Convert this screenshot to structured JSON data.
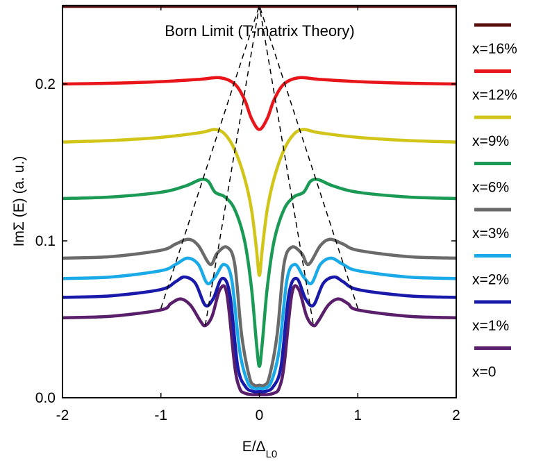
{
  "chart_data": {
    "type": "line",
    "title": "Born Limit (T-matrix Theory)",
    "xlabel": {
      "main": "E/Δ",
      "sub": "L0"
    },
    "ylabel": "ImΣ (E) (a. u.)",
    "xlim": [
      -2,
      2
    ],
    "ylim": [
      0,
      0.25
    ],
    "xticks": [
      {
        "value": -2,
        "label": "-2"
      },
      {
        "value": -1,
        "label": "-1"
      },
      {
        "value": 0,
        "label": "0"
      },
      {
        "value": 1,
        "label": "1"
      },
      {
        "value": 2,
        "label": "2"
      }
    ],
    "yticks": [
      {
        "value": 0.0,
        "label": "0.0"
      },
      {
        "value": 0.1,
        "label": "0.1"
      },
      {
        "value": 0.2,
        "label": "0.2"
      }
    ],
    "grid": false,
    "legend_position": "right-outside",
    "series": [
      {
        "name": "x=16%",
        "color": "#5a0f0f",
        "x": [
          -2,
          -1,
          -0.5,
          0,
          0.5,
          1,
          2
        ],
        "y": [
          0.2495,
          0.2495,
          0.2495,
          0.2495,
          0.2495,
          0.2495,
          0.2495
        ]
      },
      {
        "name": "x=12%",
        "color": "#e8161a",
        "x": [
          -2,
          -1.5,
          -1,
          -0.6,
          -0.4,
          -0.25,
          -0.15,
          -0.08,
          0,
          0.08,
          0.15,
          0.25,
          0.4,
          0.6,
          1,
          1.5,
          2
        ],
        "y": [
          0.2,
          0.2005,
          0.2015,
          0.203,
          0.204,
          0.2,
          0.19,
          0.178,
          0.171,
          0.178,
          0.19,
          0.2,
          0.204,
          0.203,
          0.2015,
          0.2005,
          0.2
        ]
      },
      {
        "name": "x=9%",
        "color": "#d2c51a",
        "x": [
          -2,
          -1.5,
          -1,
          -0.6,
          -0.45,
          -0.35,
          -0.25,
          -0.15,
          -0.08,
          -0.03,
          0,
          0.03,
          0.08,
          0.15,
          0.25,
          0.35,
          0.45,
          0.6,
          1,
          1.5,
          2
        ],
        "y": [
          0.163,
          0.164,
          0.166,
          0.169,
          0.171,
          0.168,
          0.158,
          0.14,
          0.12,
          0.095,
          0.078,
          0.095,
          0.12,
          0.14,
          0.158,
          0.168,
          0.171,
          0.169,
          0.166,
          0.164,
          0.163
        ]
      },
      {
        "name": "x=6%",
        "color": "#1a9a55",
        "x": [
          -2,
          -1.5,
          -1,
          -0.75,
          -0.6,
          -0.52,
          -0.45,
          -0.35,
          -0.25,
          -0.15,
          -0.08,
          -0.03,
          0,
          0.03,
          0.08,
          0.15,
          0.25,
          0.35,
          0.45,
          0.52,
          0.6,
          0.75,
          1,
          1.5,
          2
        ],
        "y": [
          0.127,
          0.128,
          0.131,
          0.135,
          0.139,
          0.138,
          0.131,
          0.128,
          0.12,
          0.1,
          0.07,
          0.035,
          0.02,
          0.035,
          0.07,
          0.1,
          0.12,
          0.128,
          0.131,
          0.138,
          0.139,
          0.135,
          0.131,
          0.128,
          0.127
        ]
      },
      {
        "name": "x=3%",
        "color": "#6a6a6a",
        "x": [
          -2,
          -1.5,
          -1,
          -0.85,
          -0.72,
          -0.62,
          -0.5,
          -0.43,
          -0.33,
          -0.25,
          -0.18,
          -0.1,
          -0.05,
          0,
          0.05,
          0.1,
          0.18,
          0.25,
          0.33,
          0.43,
          0.5,
          0.62,
          0.72,
          0.85,
          1,
          1.5,
          2
        ],
        "y": [
          0.089,
          0.09,
          0.094,
          0.098,
          0.101,
          0.097,
          0.085,
          0.092,
          0.096,
          0.085,
          0.04,
          0.013,
          0.008,
          0.008,
          0.008,
          0.013,
          0.04,
          0.085,
          0.096,
          0.092,
          0.085,
          0.097,
          0.101,
          0.098,
          0.094,
          0.09,
          0.089
        ]
      },
      {
        "name": "x=2%",
        "color": "#1aaae8",
        "x": [
          -2,
          -1.5,
          -1,
          -0.85,
          -0.73,
          -0.62,
          -0.53,
          -0.45,
          -0.36,
          -0.28,
          -0.2,
          -0.12,
          -0.05,
          0,
          0.05,
          0.12,
          0.2,
          0.28,
          0.36,
          0.45,
          0.53,
          0.62,
          0.73,
          0.85,
          1,
          1.5,
          2
        ],
        "y": [
          0.076,
          0.077,
          0.081,
          0.085,
          0.089,
          0.085,
          0.073,
          0.077,
          0.085,
          0.075,
          0.03,
          0.01,
          0.006,
          0.006,
          0.006,
          0.01,
          0.03,
          0.075,
          0.085,
          0.077,
          0.073,
          0.085,
          0.089,
          0.085,
          0.081,
          0.077,
          0.076
        ]
      },
      {
        "name": "x=1%",
        "color": "#1a1aaa",
        "x": [
          -2,
          -1.5,
          -1,
          -0.85,
          -0.76,
          -0.65,
          -0.55,
          -0.47,
          -0.38,
          -0.3,
          -0.22,
          -0.14,
          -0.06,
          0,
          0.06,
          0.14,
          0.22,
          0.3,
          0.38,
          0.47,
          0.55,
          0.65,
          0.76,
          0.85,
          1,
          1.5,
          2
        ],
        "y": [
          0.064,
          0.065,
          0.069,
          0.074,
          0.077,
          0.073,
          0.059,
          0.063,
          0.076,
          0.066,
          0.02,
          0.007,
          0.004,
          0.004,
          0.004,
          0.007,
          0.02,
          0.066,
          0.076,
          0.063,
          0.059,
          0.073,
          0.077,
          0.074,
          0.069,
          0.065,
          0.064
        ]
      },
      {
        "name": "x=0",
        "color": "#5a1f6a",
        "x": [
          -2,
          -1.5,
          -1,
          -0.9,
          -0.8,
          -0.7,
          -0.6,
          -0.55,
          -0.48,
          -0.4,
          -0.33,
          -0.25,
          -0.2,
          -0.15,
          -0.08,
          0,
          0.08,
          0.15,
          0.2,
          0.25,
          0.33,
          0.4,
          0.48,
          0.55,
          0.6,
          0.7,
          0.8,
          0.9,
          1,
          1.5,
          2
        ],
        "y": [
          0.051,
          0.052,
          0.056,
          0.06,
          0.063,
          0.059,
          0.049,
          0.046,
          0.052,
          0.069,
          0.066,
          0.02,
          0.006,
          0.003,
          0.002,
          0.002,
          0.002,
          0.003,
          0.006,
          0.02,
          0.066,
          0.069,
          0.052,
          0.046,
          0.049,
          0.059,
          0.063,
          0.06,
          0.056,
          0.052,
          0.051
        ]
      }
    ],
    "guides": [
      {
        "style": "dashed",
        "x": [
          -1,
          0,
          1
        ],
        "y": [
          0.057,
          0.25,
          0.057
        ]
      },
      {
        "style": "dashed",
        "x": [
          -0.55,
          0,
          0.55
        ],
        "y": [
          0.046,
          0.25,
          0.046
        ]
      }
    ]
  }
}
